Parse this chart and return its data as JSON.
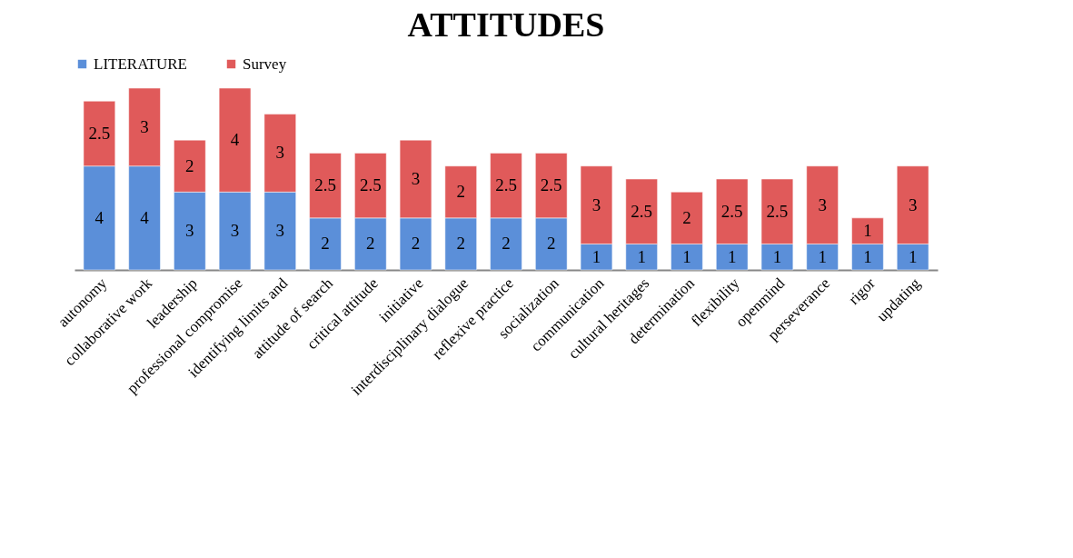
{
  "chart_data": {
    "type": "bar",
    "title": "ATTITUDES",
    "stacked": true,
    "data_labels": true,
    "legend": "top",
    "grid": false,
    "categories": [
      "autonomy",
      "collaborative work",
      "leadership",
      "professional compromise",
      "identifying limits and",
      "attitude of search",
      "critical attitude",
      "initiative",
      "interdisciplinary dialogue",
      "reflexive practice",
      "socialization",
      "communication",
      "cultural heritages",
      "determination",
      "flexibility",
      "openmind",
      "perseverance",
      "rigor",
      "updating"
    ],
    "series": [
      {
        "name": "LITERATURE",
        "color": "#5b8fd9",
        "values": [
          4,
          4,
          3,
          3,
          3,
          2,
          2,
          2,
          2,
          2,
          2,
          1,
          1,
          1,
          1,
          1,
          1,
          1,
          1
        ]
      },
      {
        "name": "Survey",
        "color": "#e05a5a",
        "values": [
          2.5,
          3,
          2,
          4,
          3,
          2.5,
          2.5,
          3,
          2,
          2.5,
          2.5,
          3,
          2.5,
          2,
          2.5,
          2.5,
          3,
          1,
          3
        ]
      }
    ]
  }
}
